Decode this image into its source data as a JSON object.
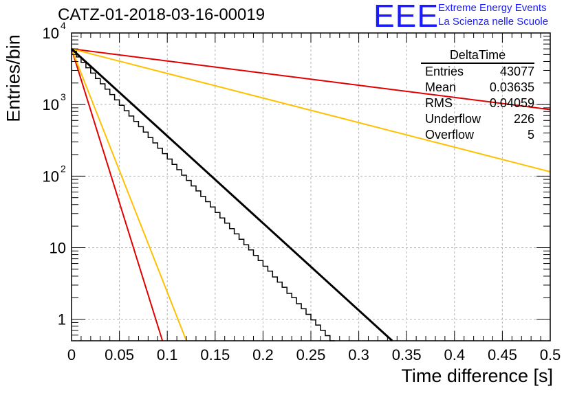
{
  "header": {
    "title": "CATZ-01-2018-03-16-00019",
    "logo_text": "EEE",
    "logo_line1": "Extreme Energy Events",
    "logo_line2": "La Scienza nelle Scuole"
  },
  "stats_box": {
    "name": "DeltaTime",
    "rows": [
      {
        "label": "Entries",
        "value": "43077"
      },
      {
        "label": "Mean",
        "value": "0.03635"
      },
      {
        "label": "RMS",
        "value": "0.04059"
      },
      {
        "label": "Underflow",
        "value": "226"
      },
      {
        "label": "Overflow",
        "value": "5"
      }
    ]
  },
  "colors": {
    "histogram": "#000000",
    "red": "#e00000",
    "yellow": "#ffc000",
    "fit": "#000000",
    "grid": "#b4b4b4",
    "logo": "#1a1aff"
  },
  "chart_data": {
    "type": "histogram",
    "xlabel": "Time difference [s]",
    "ylabel": "Entries/bin",
    "xlim": [
      0,
      0.5
    ],
    "ylim": [
      0.5,
      10000
    ],
    "yscale": "log",
    "grid": true,
    "x_ticks": [
      "0",
      "0.05",
      "0.1",
      "0.15",
      "0.2",
      "0.25",
      "0.3",
      "0.35",
      "0.4",
      "0.45",
      "0.5"
    ],
    "y_ticks": [
      {
        "value": 1,
        "label": "1"
      },
      {
        "value": 10,
        "label": "10"
      },
      {
        "value": 100,
        "label": "10",
        "exp": "2"
      },
      {
        "value": 1000,
        "label": "10",
        "exp": "3"
      },
      {
        "value": 10000,
        "label": "10",
        "exp": "4"
      }
    ],
    "bin_width": 0.005,
    "bins": [
      5560,
      4625,
      3890,
      3270,
      2750,
      2315,
      1950,
      1640,
      1380,
      1160,
      975,
      820,
      690,
      580,
      490,
      412,
      346,
      291,
      245,
      206,
      173,
      146,
      123,
      103,
      87,
      73,
      62,
      52,
      44,
      37,
      31,
      26,
      22,
      18.5,
      15.6,
      13.1,
      11,
      9.3,
      7.8,
      6.6,
      5.5,
      4.7,
      3.9,
      3.3,
      2.8,
      2.3,
      2.0,
      1.65,
      1.4,
      1.17,
      0.98,
      0.83,
      0.7,
      0.59,
      0.5
    ],
    "curves": [
      {
        "color": "red",
        "points": [
          [
            0,
            6000
          ],
          [
            0.5,
            850
          ]
        ]
      },
      {
        "color": "yellow",
        "points": [
          [
            0,
            6000
          ],
          [
            0.5,
            115
          ]
        ]
      },
      {
        "color": "red",
        "points": [
          [
            0,
            6000
          ],
          [
            0.095,
            0.5
          ]
        ]
      },
      {
        "color": "yellow",
        "points": [
          [
            0,
            6000
          ],
          [
            0.12,
            0.5
          ]
        ]
      },
      {
        "color": "fit",
        "points": [
          [
            0,
            6000
          ],
          [
            0.335,
            0.5
          ]
        ]
      }
    ]
  }
}
